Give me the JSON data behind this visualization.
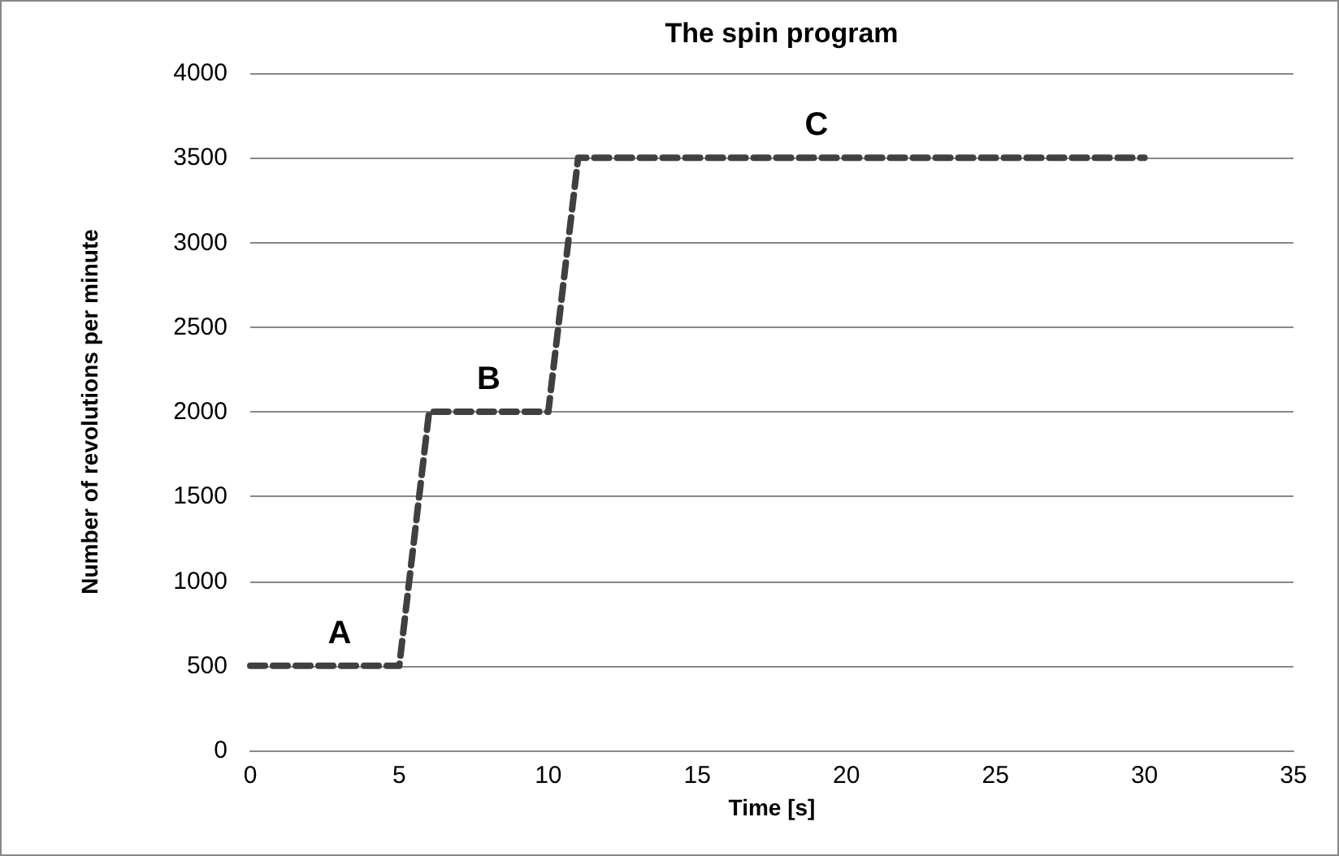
{
  "chart_data": {
    "type": "line",
    "title": "The spin program",
    "xlabel": "Time [s]",
    "ylabel": "Number of revolutions per minute",
    "x": [
      0,
      5,
      6,
      10,
      11,
      30
    ],
    "series": [
      {
        "color": "#404040",
        "values": [
          500,
          500,
          2000,
          2000,
          3500,
          3500
        ]
      }
    ],
    "xlim": [
      0,
      35
    ],
    "xticks": [
      0,
      5,
      10,
      15,
      20,
      25,
      30,
      35
    ],
    "ylim": [
      0,
      4000
    ],
    "yticks": [
      0,
      500,
      1000,
      1500,
      2000,
      2500,
      3000,
      3500,
      4000
    ],
    "grid": "y",
    "marker": "none",
    "line_style": "dashed",
    "annotations": [
      {
        "text": "A",
        "x": 3,
        "y": 500
      },
      {
        "text": "B",
        "x": 8,
        "y": 2000
      },
      {
        "text": "C",
        "x": 19,
        "y": 3500
      }
    ]
  }
}
